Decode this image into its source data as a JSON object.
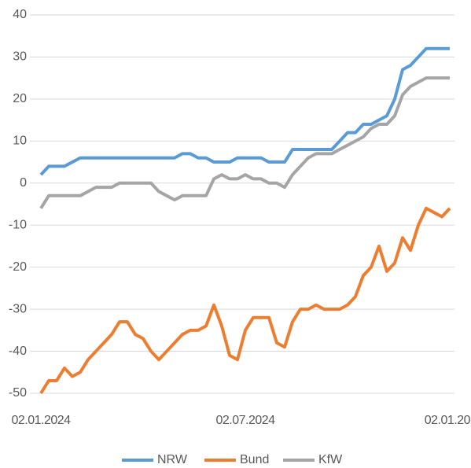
{
  "chart_data": {
    "type": "line",
    "categories": [
      "02.01.2024",
      null,
      null,
      null,
      null,
      null,
      null,
      null,
      null,
      null,
      null,
      null,
      null,
      null,
      null,
      null,
      null,
      null,
      null,
      null,
      null,
      null,
      null,
      null,
      null,
      null,
      "02.07.2024",
      null,
      null,
      null,
      null,
      null,
      null,
      null,
      null,
      null,
      null,
      null,
      null,
      null,
      null,
      null,
      null,
      null,
      null,
      null,
      null,
      null,
      null,
      null,
      null,
      null,
      "02.01.20"
    ],
    "series": [
      {
        "name": "NRW",
        "color": "#5b9bd5",
        "values": [
          2,
          4,
          4,
          4,
          5,
          6,
          6,
          6,
          6,
          6,
          6,
          6,
          6,
          6,
          6,
          6,
          6,
          6,
          7,
          7,
          6,
          6,
          5,
          5,
          5,
          6,
          6,
          6,
          6,
          5,
          5,
          5,
          8,
          8,
          8,
          8,
          8,
          8,
          10,
          12,
          12,
          14,
          14,
          15,
          16,
          20,
          27,
          28,
          30,
          32,
          32,
          32,
          32
        ]
      },
      {
        "name": "Bund",
        "color": "#ed7d31",
        "values": [
          -50,
          -47,
          -47,
          -44,
          -46,
          -45,
          -42,
          -40,
          -38,
          -36,
          -33,
          -33,
          -36,
          -37,
          -40,
          -42,
          -40,
          -38,
          -36,
          -35,
          -35,
          -34,
          -29,
          -34,
          -41,
          -42,
          -35,
          -32,
          -32,
          -32,
          -38,
          -39,
          -33,
          -30,
          -30,
          -29,
          -30,
          -30,
          -30,
          -29,
          -27,
          -22,
          -20,
          -15,
          -21,
          -19,
          -13,
          -16,
          -10,
          -6,
          -7,
          -8,
          -6
        ]
      },
      {
        "name": "KfW",
        "color": "#a5a5a5",
        "values": [
          -6,
          -3,
          -3,
          -3,
          -3,
          -3,
          -2,
          -1,
          -1,
          -1,
          0,
          0,
          0,
          0,
          0,
          -2,
          -3,
          -4,
          -3,
          -3,
          -3,
          -3,
          1,
          2,
          1,
          1,
          2,
          1,
          1,
          0,
          0,
          -1,
          2,
          4,
          6,
          7,
          7,
          7,
          8,
          9,
          10,
          11,
          13,
          14,
          14,
          16,
          21,
          23,
          24,
          25,
          25,
          25,
          25
        ]
      }
    ],
    "ylim": [
      -50,
      40
    ],
    "yticks": [
      -50,
      -40,
      -30,
      -20,
      -10,
      0,
      10,
      20,
      30,
      40
    ],
    "grid": true,
    "legend": "bottom"
  }
}
